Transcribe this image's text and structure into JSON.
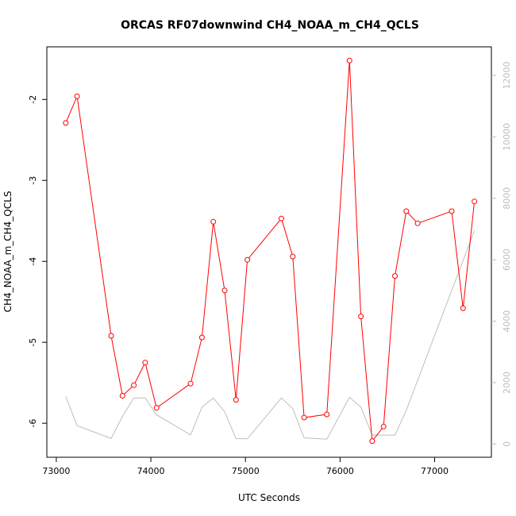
{
  "chart_data": {
    "type": "line",
    "title": "ORCAS RF07downwind CH4_NOAA_m_CH4_QCLS",
    "xlabel": "UTC Seconds",
    "ylabel": "CH4_NOAA_m_CH4_QCLS",
    "xlim": [
      72900,
      77600
    ],
    "ylim": [
      -6.42,
      -1.35
    ],
    "y2lim": [
      -430,
      12930
    ],
    "x_ticks": [
      73000,
      74000,
      75000,
      76000,
      77000
    ],
    "y_ticks": [
      -6,
      -5,
      -4,
      -3,
      -2
    ],
    "y2_ticks": [
      0,
      2000,
      4000,
      6000,
      8000,
      10000,
      12000
    ],
    "series": [
      {
        "color": "#ff0000",
        "marker": "open-circle",
        "axis": "left",
        "x": [
          73100,
          73220,
          73580,
          73700,
          73820,
          73940,
          74060,
          74420,
          74540,
          74660,
          74780,
          74900,
          75020,
          75380,
          75500,
          75620,
          75860,
          76100,
          76220,
          76340,
          76460,
          76580,
          76700,
          76820,
          77180,
          77300,
          77420
        ],
        "y": [
          -2.29,
          -1.96,
          -4.92,
          -5.66,
          -5.53,
          -5.25,
          -5.81,
          -5.51,
          -4.94,
          -3.51,
          -4.36,
          -5.71,
          -3.98,
          -3.47,
          -3.94,
          -5.93,
          -5.89,
          -1.52,
          -4.68,
          -6.22,
          -6.04,
          -4.18,
          -3.38,
          -3.53,
          -3.38,
          -4.58,
          -3.26
        ]
      },
      {
        "color": "#bebebe",
        "axis": "right",
        "x": [
          73100,
          73220,
          73580,
          73700,
          73820,
          73940,
          74060,
          74420,
          74540,
          74660,
          74780,
          74900,
          75020,
          75380,
          75500,
          75620,
          75860,
          76100,
          76220,
          76340,
          76460,
          76580,
          76700,
          77420
        ],
        "y": [
          1550,
          600,
          180,
          900,
          1500,
          1500,
          950,
          300,
          1200,
          1500,
          1050,
          180,
          170,
          1500,
          1150,
          200,
          160,
          1520,
          1200,
          290,
          290,
          290,
          1100,
          6950
        ]
      }
    ]
  }
}
